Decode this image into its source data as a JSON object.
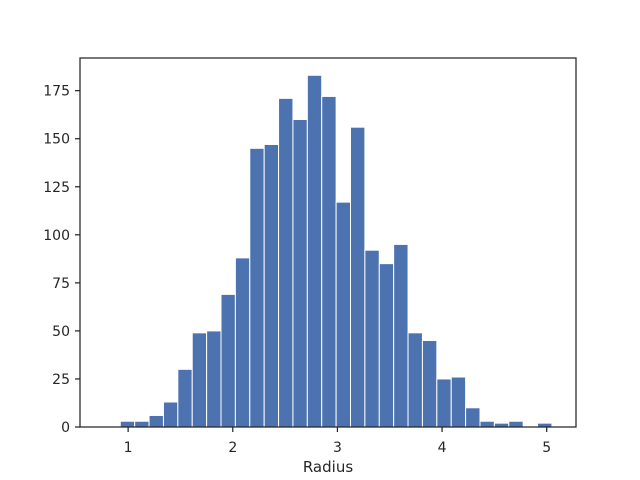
{
  "chart_data": {
    "type": "bar",
    "subtype": "histogram",
    "xlabel": "Radius",
    "ylabel": "",
    "title": "",
    "xlim": [
      0.54,
      5.28
    ],
    "ylim": [
      0,
      192
    ],
    "bin_start": 0.925,
    "bin_width": 0.1375,
    "counts": [
      3,
      3,
      6,
      13,
      30,
      49,
      50,
      69,
      88,
      145,
      147,
      171,
      160,
      183,
      172,
      117,
      156,
      92,
      85,
      95,
      49,
      45,
      25,
      26,
      10,
      3,
      2,
      3,
      0,
      2
    ],
    "xticks": [
      1,
      2,
      3,
      4,
      5
    ],
    "xtick_labels": [
      "1",
      "2",
      "3",
      "4",
      "5"
    ],
    "yticks": [
      0,
      25,
      50,
      75,
      100,
      125,
      150,
      175
    ],
    "ytick_labels": [
      "0",
      "25",
      "50",
      "75",
      "100",
      "125",
      "150",
      "175"
    ],
    "bar_color": "#4c72b0",
    "bar_edge_color": "#ffffff",
    "grid": false,
    "legend": "none"
  }
}
